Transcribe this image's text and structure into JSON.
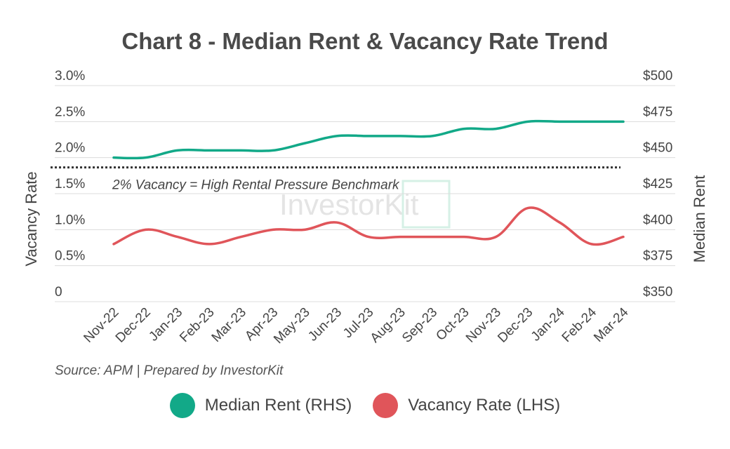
{
  "chart_data": {
    "type": "line",
    "title": "Chart 8 - Median Rent & Vacancy Rate Trend",
    "categories": [
      "Nov-22",
      "Dec-22",
      "Jan-23",
      "Feb-23",
      "Mar-23",
      "Apr-23",
      "May-23",
      "Jun-23",
      "Jul-23",
      "Aug-23",
      "Sep-23",
      "Oct-23",
      "Nov-23",
      "Dec-23",
      "Jan-24",
      "Feb-24",
      "Mar-24"
    ],
    "left_axis": {
      "label": "Vacancy Rate",
      "ylim": [
        0,
        3.0
      ],
      "ticks": [
        0,
        0.5,
        1.0,
        1.5,
        2.0,
        2.5,
        3.0
      ],
      "tick_labels": [
        "0",
        "0.5%",
        "1.0%",
        "1.5%",
        "2.0%",
        "2.5%",
        "3.0%"
      ]
    },
    "right_axis": {
      "label": "Median Rent",
      "ylim": [
        350,
        500
      ],
      "ticks": [
        350,
        375,
        400,
        425,
        450,
        475,
        500
      ],
      "tick_labels": [
        "$350",
        "$375",
        "$400",
        "$425",
        "$450",
        "$475",
        "$500"
      ]
    },
    "series": [
      {
        "name": "Median Rent (RHS)",
        "axis": "right",
        "color": "#12a988",
        "values": [
          450,
          450,
          455,
          455,
          455,
          455,
          460,
          465,
          465,
          465,
          465,
          470,
          470,
          475,
          475,
          475,
          475
        ]
      },
      {
        "name": "Vacancy Rate (LHS)",
        "axis": "left",
        "color": "#e0555a",
        "values": [
          0.8,
          1.0,
          0.9,
          0.8,
          0.9,
          1.0,
          1.0,
          1.1,
          0.9,
          0.9,
          0.9,
          0.9,
          0.9,
          1.3,
          1.1,
          0.8,
          0.9
        ]
      }
    ],
    "benchmark": {
      "axis": "left",
      "value": 2.0,
      "label": "2% Vacancy = High Rental Pressure Benchmark",
      "color": "#333333"
    },
    "grid": true,
    "legend_position": "bottom"
  },
  "watermark": "InvestorKit",
  "source": "Source: APM | Prepared by InvestorKit"
}
